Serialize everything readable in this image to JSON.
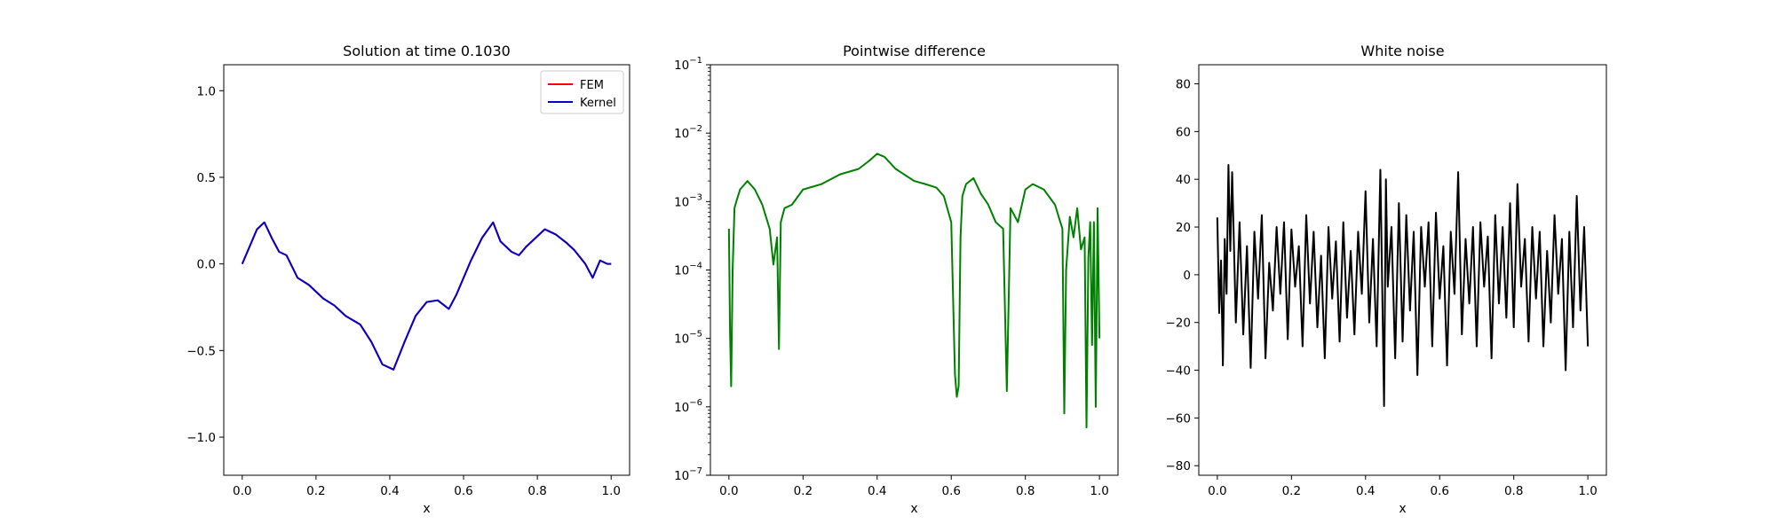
{
  "chart_data": [
    {
      "type": "line",
      "title": "Solution at time 0.1030",
      "xlabel": "x",
      "ylabel": "",
      "xlim": [
        -0.05,
        1.05
      ],
      "ylim": [
        -1.22,
        1.15
      ],
      "xticks": [
        "0.0",
        "0.2",
        "0.4",
        "0.6",
        "0.8",
        "1.0"
      ],
      "xtick_values": [
        0,
        0.2,
        0.4,
        0.6,
        0.8,
        1.0
      ],
      "yticks": [
        "−1.0",
        "−0.5",
        "0.0",
        "0.5",
        "1.0"
      ],
      "ytick_values": [
        -1.0,
        -0.5,
        0.0,
        0.5,
        1.0
      ],
      "legend_position": "top-right",
      "series": [
        {
          "name": "FEM",
          "color": "#ff0000",
          "x": [
            0,
            0.02,
            0.04,
            0.06,
            0.08,
            0.1,
            0.12,
            0.15,
            0.18,
            0.22,
            0.25,
            0.28,
            0.32,
            0.35,
            0.38,
            0.41,
            0.44,
            0.47,
            0.5,
            0.53,
            0.56,
            0.58,
            0.62,
            0.65,
            0.68,
            0.7,
            0.73,
            0.75,
            0.77,
            0.82,
            0.85,
            0.88,
            0.9,
            0.93,
            0.95,
            0.97,
            0.99,
            1.0
          ],
          "y": [
            0,
            0.1,
            0.2,
            0.24,
            0.15,
            0.07,
            0.05,
            -0.08,
            -0.12,
            -0.2,
            -0.24,
            -0.3,
            -0.35,
            -0.45,
            -0.58,
            -0.61,
            -0.45,
            -0.3,
            -0.22,
            -0.21,
            -0.26,
            -0.18,
            0.02,
            0.15,
            0.24,
            0.13,
            0.07,
            0.05,
            0.1,
            0.2,
            0.17,
            0.12,
            0.08,
            0.0,
            -0.08,
            0.02,
            0.0,
            0.0
          ]
        },
        {
          "name": "Kernel",
          "color": "#0000cc",
          "x": [
            0,
            0.02,
            0.04,
            0.06,
            0.08,
            0.1,
            0.12,
            0.15,
            0.18,
            0.22,
            0.25,
            0.28,
            0.32,
            0.35,
            0.38,
            0.41,
            0.44,
            0.47,
            0.5,
            0.53,
            0.56,
            0.58,
            0.62,
            0.65,
            0.68,
            0.7,
            0.73,
            0.75,
            0.77,
            0.82,
            0.85,
            0.88,
            0.9,
            0.93,
            0.95,
            0.97,
            0.99,
            1.0
          ],
          "y": [
            0,
            0.1,
            0.2,
            0.24,
            0.15,
            0.07,
            0.05,
            -0.08,
            -0.12,
            -0.2,
            -0.24,
            -0.3,
            -0.35,
            -0.45,
            -0.58,
            -0.61,
            -0.45,
            -0.3,
            -0.22,
            -0.21,
            -0.26,
            -0.18,
            0.02,
            0.15,
            0.24,
            0.13,
            0.07,
            0.05,
            0.1,
            0.2,
            0.17,
            0.12,
            0.08,
            0.0,
            -0.08,
            0.02,
            0.0,
            0.0
          ]
        }
      ]
    },
    {
      "type": "line",
      "title": "Pointwise difference",
      "xlabel": "x",
      "ylabel": "",
      "scale_y": "log",
      "xlim": [
        -0.05,
        1.05
      ],
      "ylim": [
        1e-07,
        0.1
      ],
      "xticks": [
        "0.0",
        "0.2",
        "0.4",
        "0.6",
        "0.8",
        "1.0"
      ],
      "xtick_values": [
        0,
        0.2,
        0.4,
        0.6,
        0.8,
        1.0
      ],
      "ytick_exponents": [
        "−7",
        "−6",
        "−5",
        "−4",
        "−3",
        "−2",
        "−1"
      ],
      "ytick_values": [
        1e-07,
        1e-06,
        1e-05,
        0.0001,
        0.001,
        0.01,
        0.1
      ],
      "series": [
        {
          "name": "",
          "color": "#008000",
          "x": [
            0,
            0.003,
            0.006,
            0.01,
            0.015,
            0.02,
            0.03,
            0.05,
            0.07,
            0.09,
            0.11,
            0.12,
            0.13,
            0.135,
            0.14,
            0.15,
            0.17,
            0.2,
            0.25,
            0.3,
            0.35,
            0.38,
            0.4,
            0.42,
            0.45,
            0.5,
            0.53,
            0.56,
            0.58,
            0.6,
            0.61,
            0.615,
            0.62,
            0.625,
            0.63,
            0.64,
            0.66,
            0.68,
            0.7,
            0.72,
            0.74,
            0.75,
            0.76,
            0.78,
            0.8,
            0.82,
            0.85,
            0.88,
            0.9,
            0.905,
            0.91,
            0.92,
            0.93,
            0.94,
            0.95,
            0.96,
            0.965,
            0.97,
            0.975,
            0.98,
            0.985,
            0.99,
            0.995,
            1.0
          ],
          "y": [
            0.0004,
            1.2e-05,
            2e-06,
            0.0001,
            0.0008,
            0.001,
            0.0015,
            0.002,
            0.0015,
            0.0009,
            0.0004,
            0.00012,
            0.0003,
            7e-06,
            0.0005,
            0.0008,
            0.0009,
            0.0015,
            0.0018,
            0.0025,
            0.003,
            0.004,
            0.005,
            0.0045,
            0.003,
            0.002,
            0.0018,
            0.0016,
            0.0012,
            0.0005,
            3e-06,
            1.4e-06,
            2e-06,
            0.0003,
            0.0012,
            0.0018,
            0.0022,
            0.0013,
            0.0009,
            0.0005,
            0.0004,
            1.7e-06,
            0.0008,
            0.0005,
            0.0015,
            0.0018,
            0.0015,
            0.0009,
            0.0004,
            8e-07,
            0.0001,
            0.0006,
            0.0003,
            0.0008,
            0.0002,
            0.0003,
            5e-07,
            0.00015,
            0.0005,
            8e-06,
            0.0005,
            1e-06,
            0.0008,
            1e-05
          ]
        }
      ]
    },
    {
      "type": "line",
      "title": "White noise",
      "xlabel": "x",
      "ylabel": "",
      "xlim": [
        -0.05,
        1.05
      ],
      "ylim": [
        -84,
        88
      ],
      "xticks": [
        "0.0",
        "0.2",
        "0.4",
        "0.6",
        "0.8",
        "1.0"
      ],
      "xtick_values": [
        0,
        0.2,
        0.4,
        0.6,
        0.8,
        1.0
      ],
      "yticks": [
        "−80",
        "−60",
        "−40",
        "−20",
        "0",
        "20",
        "40",
        "60",
        "80"
      ],
      "ytick_values": [
        -80,
        -60,
        -40,
        -20,
        0,
        20,
        40,
        60,
        80
      ],
      "series": [
        {
          "name": "",
          "color": "#000000",
          "x": [
            0,
            0.005,
            0.01,
            0.015,
            0.02,
            0.025,
            0.03,
            0.035,
            0.04,
            0.05,
            0.06,
            0.07,
            0.08,
            0.09,
            0.1,
            0.11,
            0.12,
            0.13,
            0.14,
            0.15,
            0.16,
            0.17,
            0.18,
            0.19,
            0.2,
            0.21,
            0.22,
            0.23,
            0.24,
            0.25,
            0.26,
            0.27,
            0.28,
            0.29,
            0.3,
            0.31,
            0.32,
            0.33,
            0.34,
            0.35,
            0.36,
            0.37,
            0.38,
            0.39,
            0.4,
            0.41,
            0.42,
            0.43,
            0.44,
            0.45,
            0.455,
            0.46,
            0.47,
            0.48,
            0.49,
            0.5,
            0.51,
            0.52,
            0.53,
            0.54,
            0.55,
            0.56,
            0.57,
            0.58,
            0.59,
            0.6,
            0.61,
            0.62,
            0.63,
            0.64,
            0.65,
            0.66,
            0.67,
            0.68,
            0.69,
            0.7,
            0.71,
            0.72,
            0.73,
            0.74,
            0.75,
            0.76,
            0.77,
            0.78,
            0.79,
            0.8,
            0.81,
            0.82,
            0.83,
            0.84,
            0.85,
            0.86,
            0.87,
            0.88,
            0.89,
            0.9,
            0.91,
            0.92,
            0.93,
            0.94,
            0.95,
            0.96,
            0.97,
            0.98,
            0.99,
            1.0
          ],
          "y": [
            24,
            -16,
            6,
            -38,
            15,
            -8,
            46,
            10,
            43,
            -20,
            22,
            -25,
            12,
            -39,
            18,
            -10,
            25,
            -35,
            5,
            -15,
            20,
            -8,
            22,
            -27,
            19,
            -5,
            12,
            -30,
            25,
            -12,
            18,
            -22,
            8,
            -35,
            20,
            -10,
            14,
            -28,
            22,
            -18,
            10,
            -25,
            18,
            -8,
            35,
            -20,
            15,
            -30,
            44,
            -55,
            40,
            -5,
            20,
            -35,
            30,
            -28,
            25,
            -15,
            18,
            -42,
            20,
            -5,
            22,
            -30,
            26,
            -10,
            12,
            -38,
            18,
            -8,
            43,
            -25,
            15,
            -12,
            20,
            -30,
            22,
            -5,
            16,
            -35,
            25,
            -12,
            20,
            -18,
            30,
            -22,
            38,
            -5,
            15,
            -28,
            20,
            -10,
            18,
            -30,
            10,
            -20,
            25,
            -8,
            15,
            -40,
            18,
            -22,
            33,
            -15,
            20,
            -30
          ]
        }
      ]
    }
  ]
}
